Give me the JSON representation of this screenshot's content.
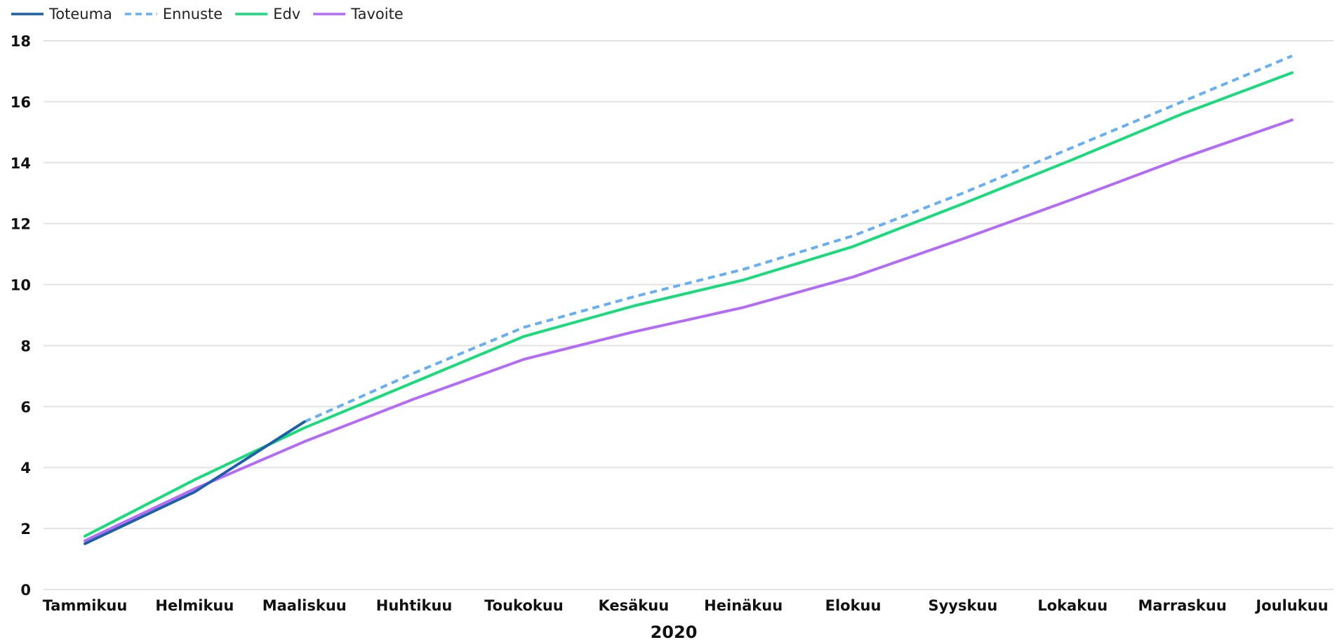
{
  "chart_data": {
    "type": "line",
    "xlabel": "2020",
    "ylabel": "",
    "ylim": [
      0,
      18
    ],
    "yticks": [
      "0",
      "2",
      "4",
      "6",
      "8",
      "10",
      "12",
      "14",
      "16",
      "18"
    ],
    "grid": true,
    "legend_position": "top-left",
    "categories": [
      "Tammikuu",
      "Helmikuu",
      "Maaliskuu",
      "Huhtikuu",
      "Toukokuu",
      "Kesäkuu",
      "Heinäkuu",
      "Elokuu",
      "Syyskuu",
      "Lokakuu",
      "Marraskuu",
      "Joulukuu"
    ],
    "series": [
      {
        "name": "Toteuma",
        "color": "#1f5fa8",
        "dash": false,
        "values": [
          1.5,
          3.2,
          5.5,
          null,
          null,
          null,
          null,
          null,
          null,
          null,
          null,
          null
        ]
      },
      {
        "name": "Ennuste",
        "color": "#6aaef2",
        "dash": true,
        "values": [
          null,
          null,
          5.5,
          7.1,
          8.6,
          9.6,
          10.5,
          11.6,
          13.0,
          14.5,
          16.0,
          17.5
        ]
      },
      {
        "name": "Edv",
        "color": "#1cd97c",
        "dash": false,
        "values": [
          1.75,
          3.6,
          5.3,
          6.8,
          8.3,
          9.3,
          10.15,
          11.25,
          12.65,
          14.1,
          15.6,
          16.95
        ]
      },
      {
        "name": "Tavoite",
        "color": "#b36cf5",
        "dash": false,
        "values": [
          1.6,
          3.3,
          4.85,
          6.25,
          7.55,
          8.45,
          9.25,
          10.25,
          11.5,
          12.8,
          14.15,
          15.4
        ]
      }
    ]
  }
}
